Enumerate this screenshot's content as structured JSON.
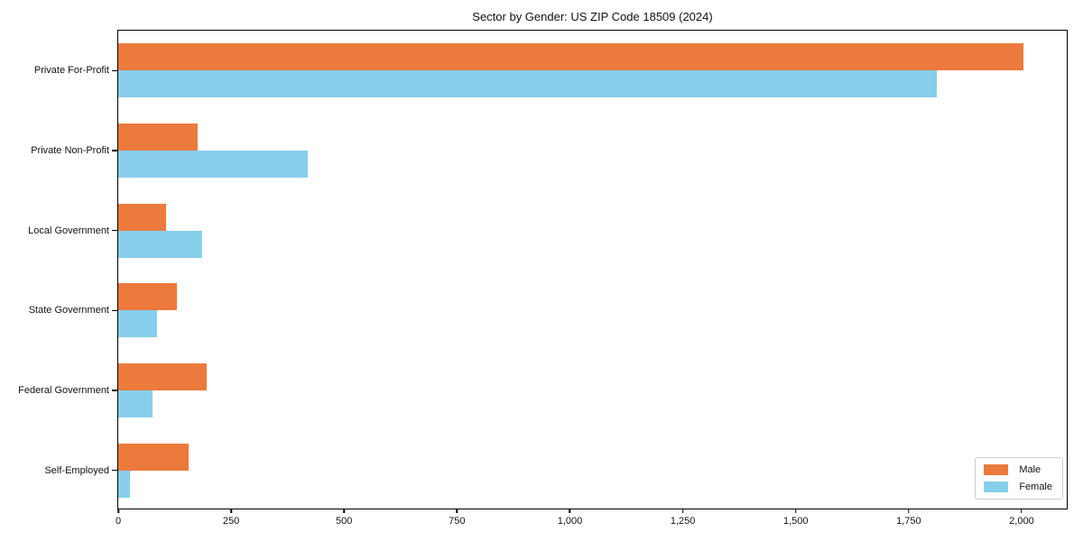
{
  "chart_data": {
    "type": "bar",
    "orientation": "horizontal",
    "title": "Sector by Gender: US ZIP Code 18509 (2024)",
    "categories": [
      "Private For-Profit",
      "Private Non-Profit",
      "Local Government",
      "State Government",
      "Federal Government",
      "Self-Employed"
    ],
    "series": [
      {
        "name": "Male",
        "color": "#EB7A3C",
        "values": [
          2005,
          175,
          105,
          130,
          195,
          155
        ]
      },
      {
        "name": "Female",
        "color": "#87CEEB",
        "values": [
          1813,
          420,
          185,
          85,
          75,
          25
        ]
      }
    ],
    "xlabel": "",
    "ylabel": "",
    "xlim": [
      0,
      2100
    ],
    "xticks": [
      0,
      250,
      500,
      750,
      1000,
      1250,
      1500,
      1750,
      2000
    ],
    "xtick_labels": [
      "0",
      "250",
      "500",
      "750",
      "1,000",
      "1,250",
      "1,500",
      "1,750",
      "2,000"
    ],
    "grid": false,
    "legend_position": "lower right",
    "background_color": "#ffffff",
    "axis_color": "#000000"
  }
}
